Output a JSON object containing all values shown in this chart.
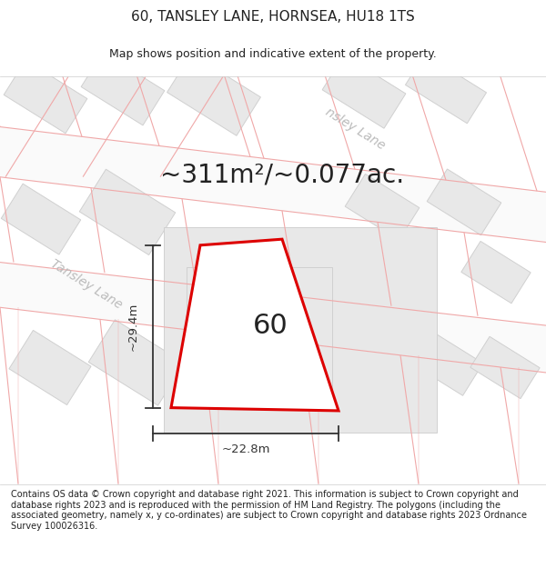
{
  "title": "60, TANSLEY LANE, HORNSEA, HU18 1TS",
  "subtitle": "Map shows position and indicative extent of the property.",
  "area_text": "~311m²/~0.077ac.",
  "label_60": "60",
  "dim_width": "~22.8m",
  "dim_height": "~29.4m",
  "road_label_1": "Tansley Lane",
  "road_label_2": "nsley Lane",
  "footer": "Contains OS data © Crown copyright and database right 2021. This information is subject to Crown copyright and database rights 2023 and is reproduced with the permission of HM Land Registry. The polygons (including the associated geometry, namely x, y co-ordinates) are subject to Crown copyright and database rights 2023 Ordnance Survey 100026316.",
  "bg_color": "#ffffff",
  "map_bg": "#ffffff",
  "parcel_line_color": "#f0a8a8",
  "building_color": "#e8e8e8",
  "building_edge": "#d0d0d0",
  "plot_fill": "#ffffff",
  "plot_edge": "#dd0000",
  "dim_line_color": "#333333",
  "text_color": "#222222",
  "road_text_color": "#bbbbbb",
  "title_fontsize": 11,
  "subtitle_fontsize": 9,
  "area_fontsize": 20,
  "label_fontsize": 22,
  "footer_fontsize": 7.0,
  "road_label_fontsize": 10
}
